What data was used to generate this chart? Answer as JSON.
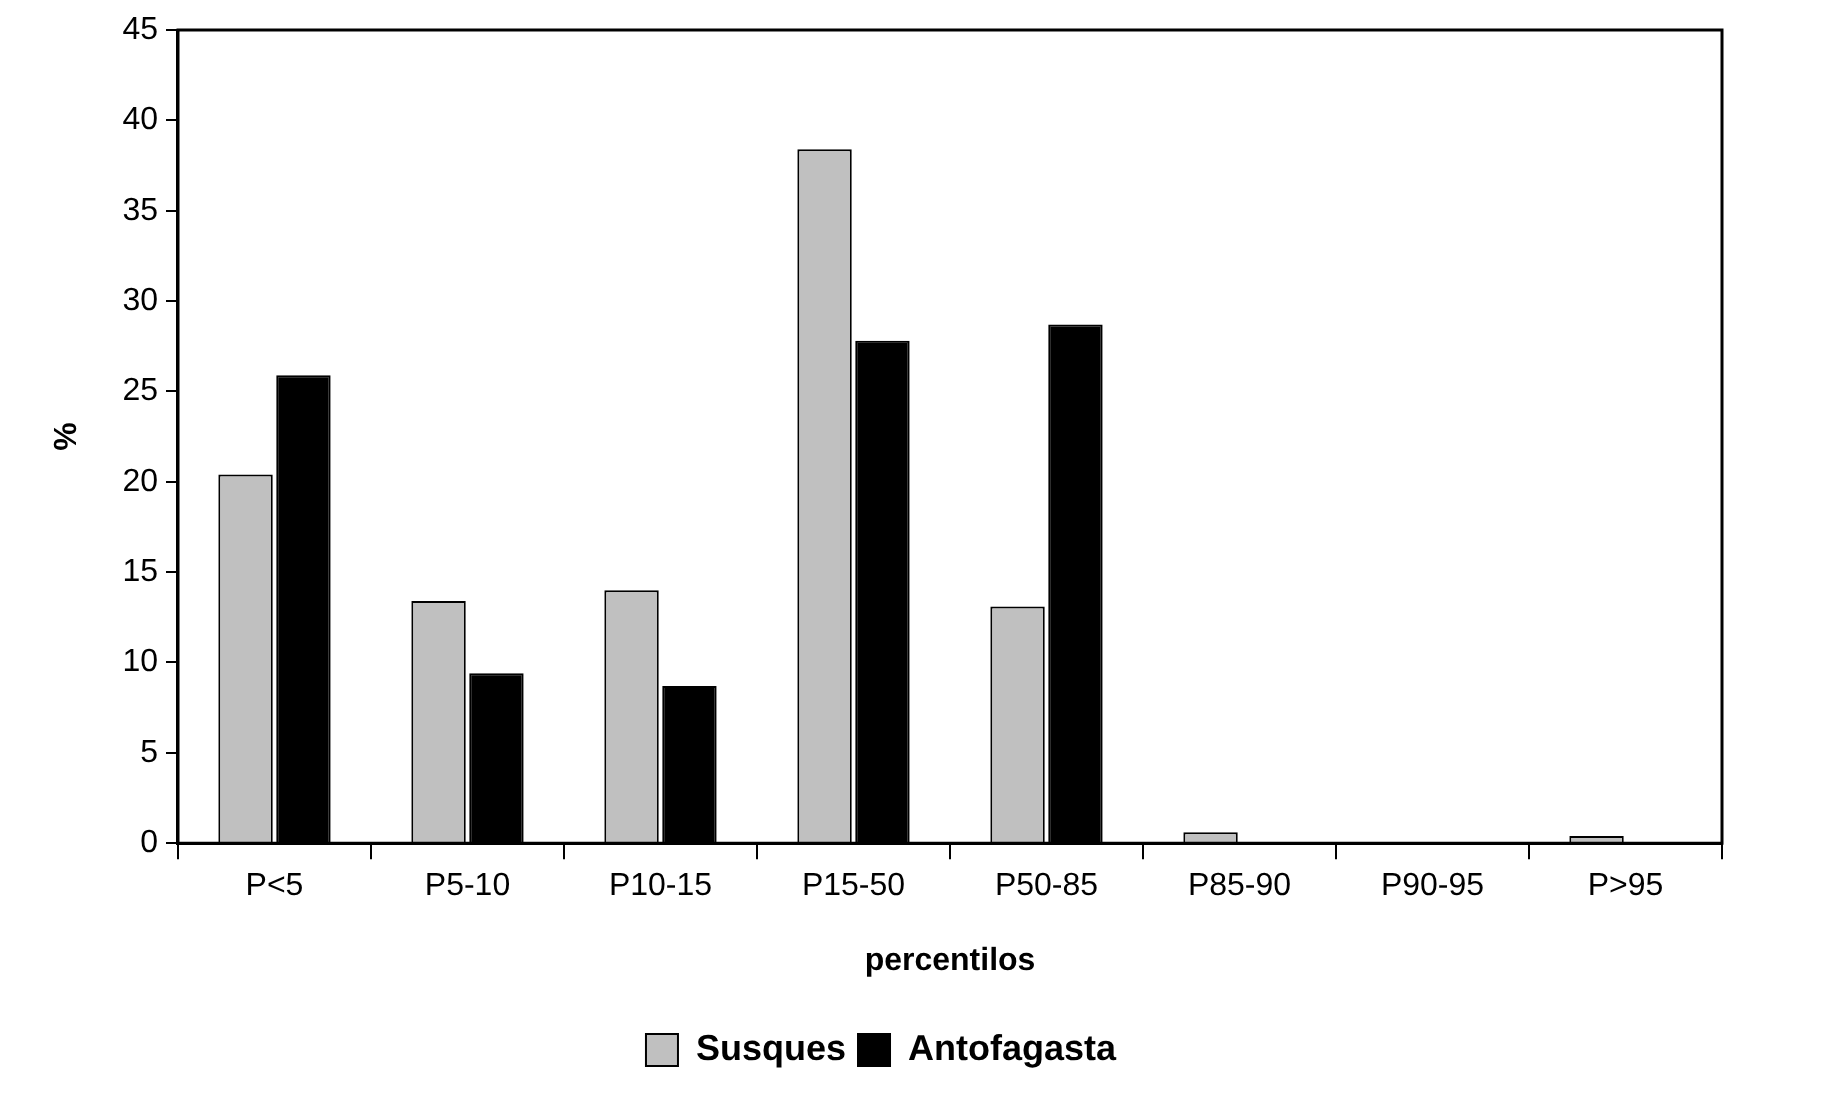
{
  "chart_data": {
    "type": "bar",
    "xlabel": "percentilos",
    "ylabel": "%",
    "categories": [
      "P<5",
      "P5-10",
      "P10-15",
      "P15-50",
      "P50-85",
      "P85-90",
      "P90-95",
      "P>95"
    ],
    "series": [
      {
        "name": "Susques",
        "color": "#c0c0c0",
        "values": [
          20.4,
          13.4,
          14.0,
          38.4,
          13.1,
          0.6,
          0,
          0.4
        ]
      },
      {
        "name": "Antofagasta",
        "color": "#000000",
        "values": [
          25.9,
          9.4,
          8.7,
          27.8,
          28.7,
          0,
          0,
          0
        ]
      }
    ],
    "ylim": [
      0,
      45
    ],
    "yticks": [
      0,
      5,
      10,
      15,
      20,
      25,
      30,
      35,
      40,
      45
    ],
    "grid": false,
    "legend": "bottom"
  }
}
